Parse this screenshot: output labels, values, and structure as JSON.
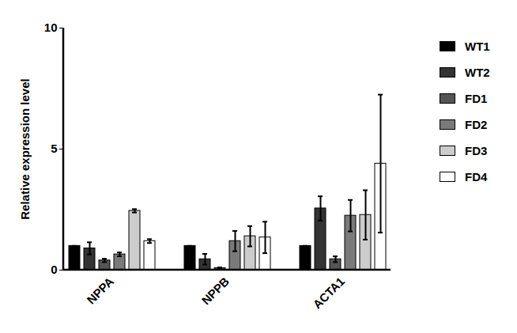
{
  "chart_data": {
    "type": "bar",
    "y_label": "Relative expression level",
    "categories": [
      "NPPA",
      "NPPB",
      "ACTA1"
    ],
    "series": [
      {
        "name": "WT1",
        "color": "#000000",
        "values": [
          1.0,
          1.0,
          1.0
        ],
        "errors": [
          0,
          0,
          0
        ]
      },
      {
        "name": "WT2",
        "color": "#333333",
        "values": [
          0.9,
          0.45,
          2.55
        ],
        "errors": [
          0.25,
          0.22,
          0.5
        ]
      },
      {
        "name": "FD1",
        "color": "#555555",
        "values": [
          0.4,
          0.08,
          0.45
        ],
        "errors": [
          0.07,
          0.03,
          0.12
        ]
      },
      {
        "name": "FD2",
        "color": "#7a7a7a",
        "values": [
          0.65,
          1.2,
          2.25
        ],
        "errors": [
          0.08,
          0.42,
          0.65
        ]
      },
      {
        "name": "FD3",
        "color": "#cccccc",
        "values": [
          2.45,
          1.4,
          2.28
        ],
        "errors": [
          0.07,
          0.42,
          1.02
        ]
      },
      {
        "name": "FD4",
        "color": "#ffffff",
        "values": [
          1.2,
          1.35,
          4.4
        ],
        "errors": [
          0.08,
          0.65,
          2.85
        ]
      }
    ],
    "ylim": [
      0,
      10
    ],
    "yticks": [
      0,
      5,
      10
    ],
    "legend": "right",
    "grid": false
  }
}
